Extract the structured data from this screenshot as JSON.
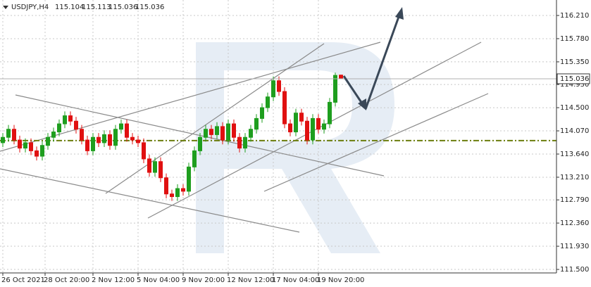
{
  "chart_data": {
    "type": "candlestick",
    "symbol": "USDJPY,H4",
    "ohlc": [
      "115.104",
      "115.113",
      "115.036",
      "115.036"
    ],
    "open": [
      113.85,
      113.95,
      114.1,
      113.9,
      113.75,
      113.85,
      113.7,
      113.6,
      113.8,
      113.95,
      114.05,
      114.2,
      114.35,
      114.25,
      114.1,
      113.9,
      113.7,
      113.95,
      113.85,
      114.0,
      113.8,
      114.1,
      114.2,
      113.95,
      113.9,
      113.85,
      113.55,
      113.3,
      113.5,
      113.2,
      112.9,
      112.85,
      113.0,
      112.95,
      113.4,
      113.7,
      113.95,
      114.1,
      114.0,
      114.15,
      113.9,
      114.2,
      113.95,
      113.75,
      113.95,
      114.1,
      114.3,
      114.5,
      114.7,
      115.0,
      114.8,
      114.2,
      114.05,
      114.4,
      114.25,
      113.9,
      114.3,
      114.1,
      114.2,
      114.6,
      115.104
    ],
    "high": [
      114.03,
      114.18,
      114.18,
      113.98,
      113.93,
      113.93,
      113.78,
      113.88,
      114.03,
      114.13,
      114.28,
      114.43,
      114.43,
      114.33,
      114.18,
      113.98,
      114.03,
      114.03,
      114.08,
      114.08,
      114.18,
      114.28,
      114.28,
      114.03,
      113.98,
      113.93,
      113.63,
      113.58,
      113.58,
      113.28,
      112.98,
      113.08,
      113.08,
      113.48,
      113.78,
      114.03,
      114.18,
      114.18,
      114.23,
      114.23,
      114.28,
      114.28,
      114.03,
      114.03,
      114.18,
      114.38,
      114.58,
      114.78,
      115.08,
      115.08,
      114.88,
      114.28,
      114.48,
      114.48,
      114.33,
      114.38,
      114.38,
      114.28,
      114.68,
      115.15,
      115.113
    ],
    "low": [
      113.77,
      113.87,
      113.82,
      113.67,
      113.67,
      113.62,
      113.52,
      113.52,
      113.72,
      113.87,
      113.97,
      114.12,
      114.17,
      114.02,
      113.82,
      113.62,
      113.62,
      113.77,
      113.77,
      113.72,
      113.72,
      114.02,
      113.87,
      113.82,
      113.77,
      113.47,
      113.22,
      113.22,
      113.12,
      112.82,
      112.77,
      112.77,
      112.87,
      112.87,
      113.32,
      113.62,
      113.87,
      113.92,
      113.92,
      113.82,
      113.82,
      113.87,
      113.67,
      113.67,
      113.87,
      114.02,
      114.22,
      114.42,
      114.62,
      114.72,
      114.12,
      113.97,
      113.97,
      114.17,
      113.82,
      113.82,
      114.02,
      114.02,
      114.12,
      114.52,
      115.036
    ],
    "close": [
      113.95,
      114.1,
      113.9,
      113.75,
      113.85,
      113.7,
      113.6,
      113.8,
      113.95,
      114.05,
      114.2,
      114.35,
      114.25,
      114.1,
      113.9,
      113.7,
      113.95,
      113.85,
      114.0,
      113.8,
      114.1,
      114.2,
      113.95,
      113.9,
      113.85,
      113.55,
      113.3,
      113.5,
      113.2,
      112.9,
      112.85,
      113.0,
      112.95,
      113.4,
      113.7,
      113.95,
      114.1,
      114.0,
      114.15,
      113.9,
      114.2,
      113.95,
      113.75,
      113.95,
      114.1,
      114.3,
      114.5,
      114.7,
      115.0,
      114.8,
      114.2,
      114.05,
      114.4,
      114.25,
      113.9,
      114.3,
      114.1,
      114.2,
      114.6,
      115.1,
      115.036
    ],
    "up_color": "#1e9e1e",
    "down_color": "#e01010",
    "last_price": 115.036,
    "level": 113.89,
    "level_color": "#6b7d0c",
    "ylim": [
      111.435,
      116.497
    ],
    "yticks": [
      {
        "value": 116.21,
        "label": "116.210"
      },
      {
        "value": 115.78,
        "label": "115.780"
      },
      {
        "value": 115.35,
        "label": "115.350"
      },
      {
        "value": 114.93,
        "label": "114.930"
      },
      {
        "value": 114.5,
        "label": "114.500"
      },
      {
        "value": 114.07,
        "label": "114.070"
      },
      {
        "value": 113.64,
        "label": "113.640"
      },
      {
        "value": 113.21,
        "label": "113.210"
      },
      {
        "value": 112.79,
        "label": "112.790"
      },
      {
        "value": 112.36,
        "label": "112.360"
      },
      {
        "value": 111.93,
        "label": "111.930"
      },
      {
        "value": 111.5,
        "label": "111.500"
      }
    ],
    "xticks": [
      {
        "value": 0,
        "label": "26 Oct 2021"
      },
      {
        "value": 7.5,
        "label": "28 Oct 20:00"
      },
      {
        "value": 16,
        "label": "2 Nov 12:00"
      },
      {
        "value": 24,
        "label": "5 Nov 04:00"
      },
      {
        "value": 32,
        "label": "9 Nov 20:00"
      },
      {
        "value": 40,
        "label": "12 Nov 12:00"
      },
      {
        "value": 48,
        "label": "17 Nov 04:00"
      },
      {
        "value": 56,
        "label": "19 Nov 20:00"
      }
    ],
    "grid": true
  }
}
